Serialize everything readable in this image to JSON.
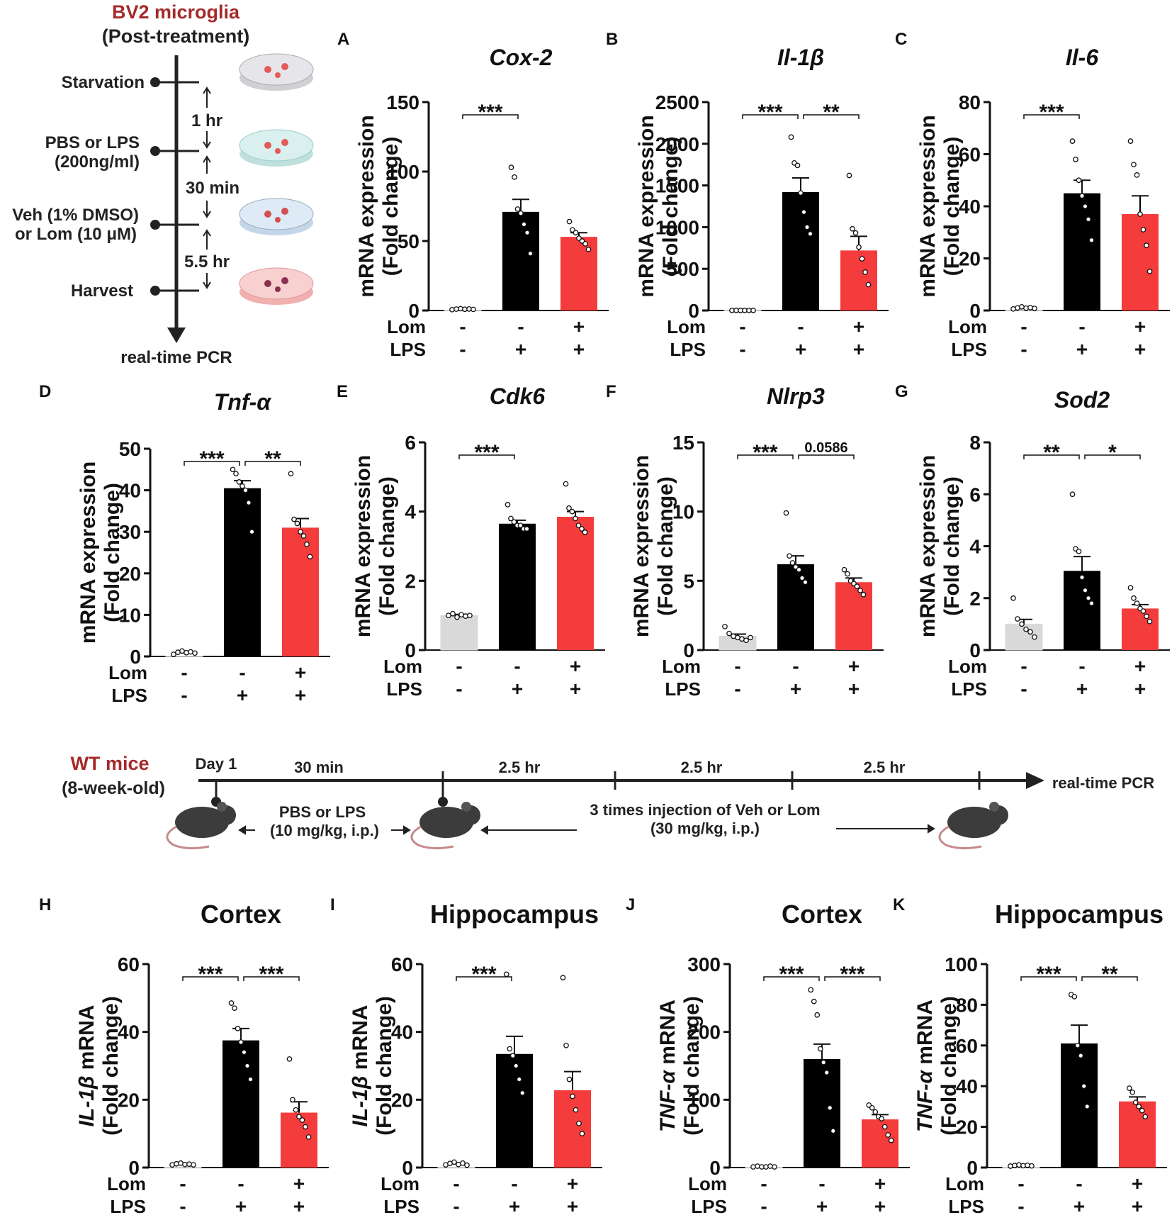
{
  "protocol": {
    "title": "BV2 microglia",
    "subtitle": "(Post-treatment)",
    "steps": [
      {
        "label": "Starvation"
      },
      {
        "label": "PBS or LPS",
        "label2": "(200ng/ml)"
      },
      {
        "label": "Veh (1% DMSO)",
        "label2": "or Lom (10 μM)"
      },
      {
        "label": "Harvest"
      }
    ],
    "intervals": [
      "1 hr",
      "30 min",
      "5.5 hr"
    ],
    "endpoint": "real-time PCR"
  },
  "mice": {
    "title": "WT mice",
    "subtitle": "(8-week-old)",
    "day": "Day 1",
    "intervals": [
      "30 min",
      "2.5 hr",
      "2.5 hr",
      "2.5 hr"
    ],
    "endpoint": "real-time PCR",
    "step1": "PBS or LPS",
    "step1b": "(10 mg/kg, i.p.)",
    "step2": "3 times injection of Veh or Lom",
    "step2b": "(30 mg/kg, i.p.)"
  },
  "legend": {
    "row1": "Lom",
    "row2": "LPS",
    "lom": [
      "-",
      "-",
      "+"
    ],
    "lps": [
      "-",
      "+",
      "+"
    ]
  },
  "colors": {
    "control_white": "#ffffff",
    "control_gray": "#d9d9d9",
    "lps": "#000000",
    "lom": "#f43c3c",
    "header_red": "#a52a2a"
  },
  "chart_data": [
    {
      "letter": "A",
      "type": "bar",
      "title": "Cox-2",
      "title_style": "italic",
      "ylabel": "mRNA expression",
      "ylabel2": "(Fold change)",
      "ylim": [
        0,
        150
      ],
      "ticks": [
        "0",
        "50",
        "100",
        "150"
      ],
      "control_color": "white",
      "values": [
        1,
        71,
        53
      ],
      "sem": [
        0.2,
        9,
        3
      ],
      "points": [
        [
          0.6,
          1.0,
          1.3,
          0.9,
          1.1,
          0.8
        ],
        [
          103,
          96,
          73,
          70,
          62,
          56,
          41
        ],
        [
          64,
          58,
          56,
          52,
          50,
          48,
          44
        ]
      ],
      "sig": [
        {
          "from": 0,
          "to": 1,
          "label": "***"
        }
      ]
    },
    {
      "letter": "B",
      "type": "bar",
      "title": "Il-1β",
      "title_style": "italic",
      "ylabel": "mRNA expression",
      "ylabel2": "(Fold change)",
      "ylim": [
        0,
        2500
      ],
      "ticks": [
        "0",
        "500",
        "1000",
        "1500",
        "2000",
        "2500"
      ],
      "control_color": "white",
      "values": [
        1,
        1420,
        720
      ],
      "sem": [
        0.3,
        170,
        170
      ],
      "points": [
        [
          1,
          1,
          1,
          1,
          1,
          1
        ],
        [
          2080,
          1770,
          1740,
          1410,
          1180,
          1000,
          920
        ],
        [
          1620,
          980,
          930,
          760,
          620,
          460,
          310
        ]
      ],
      "sig": [
        {
          "from": 0,
          "to": 1,
          "label": "***"
        },
        {
          "from": 1,
          "to": 2,
          "label": "**"
        }
      ]
    },
    {
      "letter": "C",
      "type": "bar",
      "title": "Il-6",
      "title_style": "italic",
      "ylabel": "mRNA expression",
      "ylabel2": "(Fold change)",
      "ylim": [
        0,
        80
      ],
      "ticks": [
        "0",
        "20",
        "40",
        "60",
        "80"
      ],
      "control_color": "white",
      "values": [
        1,
        45,
        37
      ],
      "sem": [
        0.2,
        5,
        7
      ],
      "points": [
        [
          0.6,
          1.0,
          1.4,
          0.9,
          1.1,
          0.8
        ],
        [
          65,
          58,
          50,
          44,
          40,
          35,
          27
        ],
        [
          65,
          56,
          52,
          37,
          31,
          25,
          15
        ]
      ],
      "sig": [
        {
          "from": 0,
          "to": 1,
          "label": "***"
        }
      ]
    },
    {
      "letter": "D",
      "type": "bar",
      "title": "Tnf-α",
      "title_style": "italic",
      "ylabel": "mRNA expression",
      "ylabel2": "(Fold change)",
      "ylim": [
        0,
        50
      ],
      "ticks": [
        "0",
        "10",
        "20",
        "30",
        "40",
        "50"
      ],
      "control_color": "white",
      "values": [
        1,
        40.5,
        31
      ],
      "sem": [
        0.2,
        1.8,
        2.2
      ],
      "points": [
        [
          0.5,
          1.0,
          1.3,
          0.9,
          1.1,
          0.8
        ],
        [
          45,
          44,
          42,
          41,
          40,
          37,
          30
        ],
        [
          44,
          33,
          32,
          30,
          29,
          27,
          24
        ]
      ],
      "sig": [
        {
          "from": 0,
          "to": 1,
          "label": "***"
        },
        {
          "from": 1,
          "to": 2,
          "label": "**"
        }
      ]
    },
    {
      "letter": "E",
      "type": "bar",
      "title": "Cdk6",
      "title_style": "italic",
      "ylabel": "mRNA expression",
      "ylabel2": "(Fold change)",
      "ylim": [
        0,
        6
      ],
      "ticks": [
        "0",
        "2",
        "4",
        "6"
      ],
      "control_color": "gray",
      "values": [
        1,
        3.65,
        3.85
      ],
      "sem": [
        0.03,
        0.1,
        0.15
      ],
      "points": [
        [
          1.0,
          1.05,
          0.95,
          1.02,
          0.98,
          1.0
        ],
        [
          4.2,
          3.8,
          3.7,
          3.6,
          3.6,
          3.5,
          3.5
        ],
        [
          4.8,
          4.1,
          4.0,
          3.8,
          3.6,
          3.5,
          3.4
        ]
      ],
      "sig": [
        {
          "from": 0,
          "to": 1,
          "label": "***"
        }
      ]
    },
    {
      "letter": "F",
      "type": "bar",
      "title": "Nlrp3",
      "title_style": "italic",
      "ylabel": "mRNA expression",
      "ylabel2": "(Fold change)",
      "ylim": [
        0,
        15
      ],
      "ticks": [
        "0",
        "5",
        "10",
        "15"
      ],
      "control_color": "gray",
      "values": [
        1,
        6.2,
        4.9
      ],
      "sem": [
        0.15,
        0.6,
        0.3
      ],
      "points": [
        [
          1.7,
          1.2,
          1.0,
          0.9,
          0.8,
          0.7,
          0.9
        ],
        [
          9.9,
          6.8,
          6.3,
          6.0,
          5.8,
          5.2,
          4.9
        ],
        [
          5.8,
          5.5,
          5.0,
          4.8,
          4.6,
          4.3,
          4.0
        ]
      ],
      "sig": [
        {
          "from": 0,
          "to": 1,
          "label": "***"
        },
        {
          "from": 1,
          "to": 2,
          "label": "0.0586"
        }
      ]
    },
    {
      "letter": "G",
      "type": "bar",
      "title": "Sod2",
      "title_style": "italic",
      "ylabel": "mRNA expression",
      "ylabel2": "(Fold change)",
      "ylim": [
        0,
        8
      ],
      "ticks": [
        "0",
        "2",
        "4",
        "6",
        "8"
      ],
      "control_color": "gray",
      "values": [
        1,
        3.05,
        1.6
      ],
      "sem": [
        0.18,
        0.55,
        0.15
      ],
      "points": [
        [
          2.0,
          1.2,
          1.0,
          0.8,
          0.7,
          0.5
        ],
        [
          6.0,
          3.9,
          3.8,
          2.8,
          2.3,
          2.0,
          1.8
        ],
        [
          2.4,
          2.0,
          1.8,
          1.6,
          1.5,
          1.3,
          1.1
        ]
      ],
      "sig": [
        {
          "from": 0,
          "to": 1,
          "label": "**"
        },
        {
          "from": 1,
          "to": 2,
          "label": "*"
        }
      ]
    },
    {
      "letter": "H",
      "type": "bar",
      "title": "Cortex",
      "title_style": "normal",
      "ylabel": "IL-1β",
      "ylabel_suffix": " mRNA",
      "ylabel_italic": true,
      "ylabel2": "(Fold change)",
      "ylim": [
        0,
        60
      ],
      "ticks": [
        "0",
        "20",
        "40",
        "60"
      ],
      "control_color": "white",
      "values": [
        1,
        37.5,
        16.2
      ],
      "sem": [
        0.2,
        3.5,
        3.2
      ],
      "points": [
        [
          0.8,
          1.1,
          1.3,
          0.9,
          1.0,
          0.8
        ],
        [
          48.5,
          47,
          41,
          37,
          34,
          30,
          26
        ],
        [
          32,
          20,
          17,
          15,
          14,
          12,
          9
        ]
      ],
      "sig": [
        {
          "from": 0,
          "to": 1,
          "label": "***"
        },
        {
          "from": 1,
          "to": 2,
          "label": "***"
        }
      ]
    },
    {
      "letter": "I",
      "type": "bar",
      "title": "Hippocampus",
      "title_style": "normal",
      "ylabel": "IL-1β",
      "ylabel_suffix": " mRNA",
      "ylabel_italic": true,
      "ylabel2": "(Fold change)",
      "ylim": [
        0,
        60
      ],
      "ticks": [
        "0",
        "20",
        "40",
        "60"
      ],
      "control_color": "white",
      "values": [
        1,
        33.5,
        22.8
      ],
      "sem": [
        0.3,
        5.2,
        5.5
      ],
      "points": [
        [
          0.8,
          1.2,
          1.6,
          0.9,
          1.3,
          0.7
        ],
        [
          57,
          35,
          33,
          30,
          26,
          22
        ],
        [
          56,
          36,
          26,
          21,
          17,
          13,
          10
        ]
      ],
      "sig": [
        {
          "from": 0,
          "to": 1,
          "label": "***"
        }
      ]
    },
    {
      "letter": "J",
      "type": "bar",
      "title": "Cortex",
      "title_style": "normal",
      "ylabel": "TNF-α",
      "ylabel_suffix": " mRNA",
      "ylabel_italic": true,
      "ylabel2": "(Fold change)",
      "ylim": [
        0,
        300
      ],
      "ticks": [
        "0",
        "100",
        "200",
        "300"
      ],
      "control_color": "white",
      "values": [
        1,
        160,
        71
      ],
      "sem": [
        0.3,
        22,
        7
      ],
      "points": [
        [
          1,
          2,
          1,
          1,
          2,
          1
        ],
        [
          262,
          245,
          225,
          175,
          155,
          140,
          88,
          54
        ],
        [
          92,
          88,
          82,
          75,
          72,
          60,
          48,
          40
        ]
      ],
      "sig": [
        {
          "from": 0,
          "to": 1,
          "label": "***"
        },
        {
          "from": 1,
          "to": 2,
          "label": "***"
        }
      ]
    },
    {
      "letter": "K",
      "type": "bar",
      "title": "Hippocampus",
      "title_style": "normal",
      "ylabel": "TNF-α",
      "ylabel_suffix": " mRNA",
      "ylabel_italic": true,
      "ylabel2": "(Fold change)",
      "ylim": [
        0,
        100
      ],
      "ticks": [
        "0",
        "20",
        "40",
        "60",
        "80",
        "100"
      ],
      "control_color": "white",
      "values": [
        1,
        61,
        32.5
      ],
      "sem": [
        0.2,
        9,
        2.2
      ],
      "points": [
        [
          0.7,
          1.0,
          1.3,
          0.9,
          1.1,
          0.8
        ],
        [
          85,
          84,
          60,
          55,
          40,
          30
        ],
        [
          39,
          37,
          32,
          30,
          28,
          25
        ]
      ],
      "sig": [
        {
          "from": 0,
          "to": 1,
          "label": "***"
        },
        {
          "from": 1,
          "to": 2,
          "label": "**"
        }
      ]
    }
  ]
}
